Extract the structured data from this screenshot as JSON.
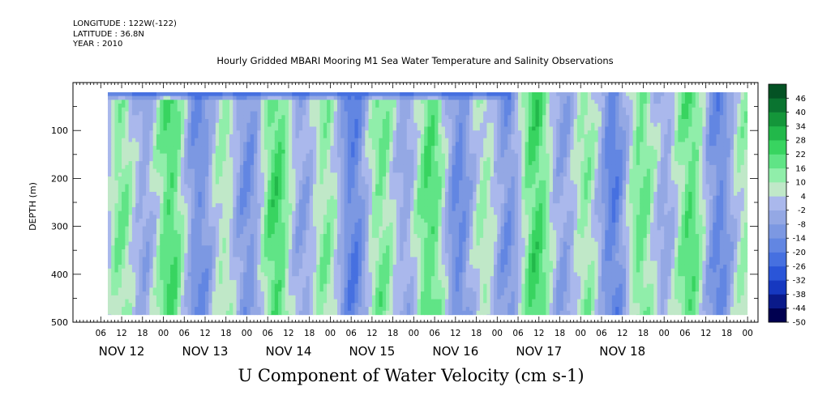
{
  "header": {
    "longitude": "LONGITUDE : 122W(-122)",
    "latitude": "LATITUDE : 36.8N",
    "year": "YEAR : 2010"
  },
  "chart_data": {
    "type": "heatmap",
    "title": "Hourly Gridded MBARI Mooring M1 Sea Water Temperature and Salinity Observations",
    "variable_title": "U Component of Water Velocity (cm s-1)",
    "ylabel": "DEPTH (m)",
    "y_axis": {
      "ticks": [
        100,
        200,
        300,
        400,
        500
      ],
      "tick_labels": [
        "100",
        "200",
        "300",
        "400",
        "500"
      ],
      "range": [
        0,
        500
      ],
      "inverted": true
    },
    "x_axis": {
      "range_hours": [
        -26,
        171
      ],
      "hour_ticks": [
        -18,
        -12,
        -6,
        0,
        6,
        12,
        18,
        24,
        30,
        36,
        42,
        48,
        54,
        60,
        66,
        72,
        78,
        84,
        90,
        96,
        102,
        108,
        114,
        120,
        126,
        132,
        138,
        144,
        150,
        156,
        162,
        168
      ],
      "hour_tick_labels": [
        "06",
        "12",
        "18",
        "00",
        "06",
        "12",
        "18",
        "00",
        "06",
        "12",
        "18",
        "00",
        "06",
        "12",
        "18",
        "00",
        "06",
        "12",
        "18",
        "00",
        "06",
        "12",
        "18",
        "00",
        "06",
        "12",
        "18",
        "00",
        "06",
        "12",
        "18",
        "00"
      ],
      "day_labels": [
        "NOV 12",
        "NOV 13",
        "NOV 14",
        "NOV 15",
        "NOV 16",
        "NOV 17",
        "NOV 18"
      ],
      "day_label_hours": [
        -12,
        12,
        36,
        60,
        84,
        108,
        132
      ]
    },
    "data_extent": {
      "hours": [
        -16,
        168
      ],
      "depth_m": [
        20,
        485
      ]
    },
    "colorbar": {
      "levels": [
        -50,
        -44,
        -38,
        -32,
        -26,
        -20,
        -14,
        -8,
        -2,
        4,
        10,
        16,
        22,
        28,
        34,
        40,
        46
      ],
      "labels": [
        "-50",
        "-44",
        "-38",
        "-32",
        "-26",
        "-20",
        "-14",
        "-8",
        "-2",
        "4",
        "10",
        "16",
        "22",
        "28",
        "34",
        "40",
        "46"
      ],
      "colors": [
        "#000050",
        "#0a1a8a",
        "#1638c0",
        "#2a55d8",
        "#4670e0",
        "#6286e2",
        "#7c98e2",
        "#94a8e4",
        "#aab8ec",
        "#c0e8c8",
        "#90eeaa",
        "#60e486",
        "#38d460",
        "#22b84a",
        "#14963a",
        "#0a7430",
        "#045224"
      ]
    },
    "field_description": {
      "surface_band": {
        "depth_m": [
          20,
          40
        ],
        "value_cm_s": -26
      },
      "typical_range_cm_s": [
        -14,
        22
      ]
    }
  }
}
